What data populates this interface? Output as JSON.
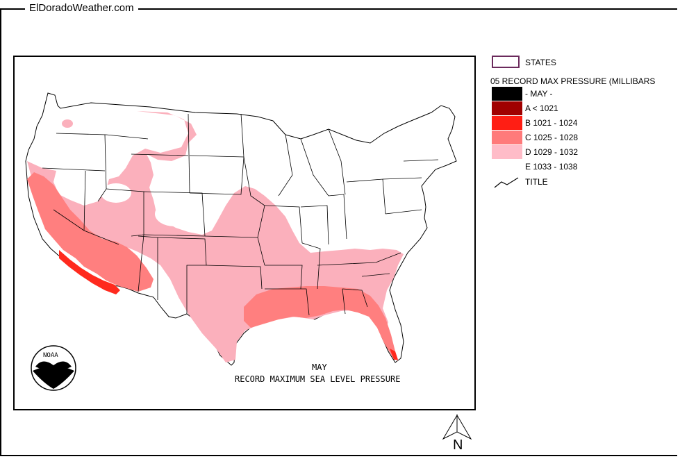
{
  "site": {
    "title": "ElDoradoWeather.com"
  },
  "map": {
    "caption_line1": "MAY",
    "caption_line2": "RECORD MAXIMUM SEA LEVEL PRESSURE",
    "logo_text": "NOAA",
    "north_label": "N"
  },
  "legend": {
    "states_label": "STATES",
    "heading": "05 RECORD MAX PRESSURE (MILLIBARS",
    "items": [
      {
        "label": "- MAY -",
        "color": "#000000"
      },
      {
        "label": "A < 1021",
        "color": "#a00000"
      },
      {
        "label": "B 1021 - 1024",
        "color": "#ff1e14"
      },
      {
        "label": "C 1025 - 1028",
        "color": "#ff7a7a"
      },
      {
        "label": "D 1029 - 1032",
        "color": "#ffbcc8"
      },
      {
        "label": "E 1033 - 1038",
        "color": "#ffffff"
      }
    ],
    "title_label": "TITLE"
  },
  "colors": {
    "state_outline": "#6b2a5c",
    "zone_c": "#ff7a7a",
    "zone_b": "#ff1e14",
    "zone_d": "#ffbcc8",
    "zone_d_light": "#fba6b3"
  }
}
